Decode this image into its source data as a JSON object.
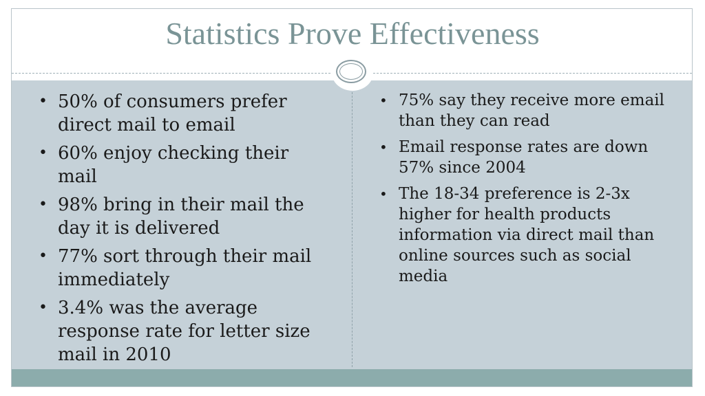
{
  "slide": {
    "title": "Statistics Prove Effectiveness",
    "left_bullets": [
      "50% of consumers prefer direct mail to email",
      "60% enjoy checking their mail",
      "98% bring in their mail the day it is delivered",
      "77% sort through their mail immediately",
      "3.4% was the average response rate for letter size mail in 2010"
    ],
    "right_bullets": [
      "75% say they receive more email than they can read",
      "Email response rates are down 57% since 2004",
      "The 18-34 preference is 2-3x higher for health products information via direct mail than online sources such as social media"
    ]
  },
  "colors": {
    "title": "#7a9496",
    "content_panel": "#c5d1d8",
    "footer_bar": "#8cacac",
    "text": "#1a1a1a"
  }
}
